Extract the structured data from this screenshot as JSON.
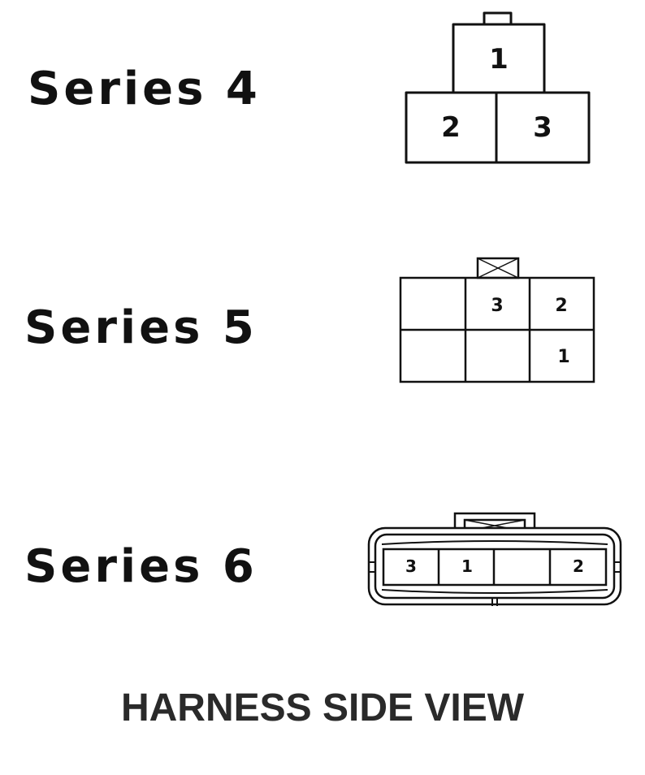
{
  "series": [
    {
      "label": "Series 4",
      "pins": [
        "1",
        "2",
        "3"
      ]
    },
    {
      "label": "Series 5",
      "pins": [
        "3",
        "2",
        "1"
      ]
    },
    {
      "label": "Series 6",
      "pins": [
        "3",
        "1",
        "2"
      ]
    }
  ],
  "caption": "HARNESS SIDE VIEW",
  "colors": {
    "ink": "#111111",
    "background": "#ffffff"
  }
}
